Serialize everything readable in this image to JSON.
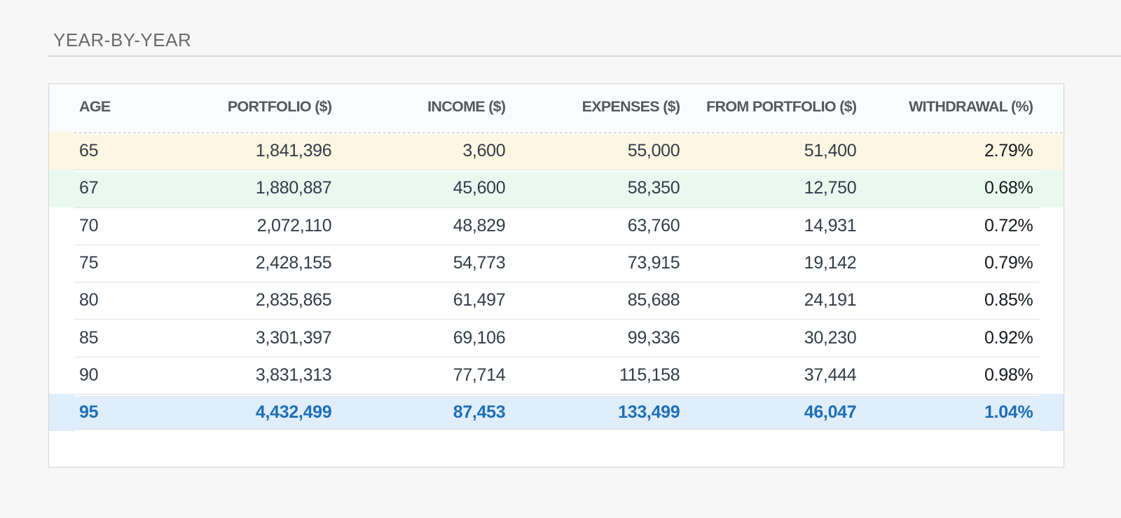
{
  "section": {
    "title": "YEAR-BY-YEAR"
  },
  "table": {
    "headers": [
      "AGE",
      "PORTFOLIO ($)",
      "INCOME ($)",
      "EXPENSES ($)",
      "FROM PORTFOLIO ($)",
      "WITHDRAWAL (%)"
    ],
    "rows": [
      {
        "age": "65",
        "portfolio": "1,841,396",
        "income": "3,600",
        "expenses": "55,000",
        "from_portfolio": "51,400",
        "withdrawal": "2.79%",
        "highlight": "yellow"
      },
      {
        "age": "67",
        "portfolio": "1,880,887",
        "income": "45,600",
        "expenses": "58,350",
        "from_portfolio": "12,750",
        "withdrawal": "0.68%",
        "highlight": "green"
      },
      {
        "age": "70",
        "portfolio": "2,072,110",
        "income": "48,829",
        "expenses": "63,760",
        "from_portfolio": "14,931",
        "withdrawal": "0.72%",
        "highlight": null
      },
      {
        "age": "75",
        "portfolio": "2,428,155",
        "income": "54,773",
        "expenses": "73,915",
        "from_portfolio": "19,142",
        "withdrawal": "0.79%",
        "highlight": null
      },
      {
        "age": "80",
        "portfolio": "2,835,865",
        "income": "61,497",
        "expenses": "85,688",
        "from_portfolio": "24,191",
        "withdrawal": "0.85%",
        "highlight": null
      },
      {
        "age": "85",
        "portfolio": "3,301,397",
        "income": "69,106",
        "expenses": "99,336",
        "from_portfolio": "30,230",
        "withdrawal": "0.92%",
        "highlight": null
      },
      {
        "age": "90",
        "portfolio": "3,831,313",
        "income": "77,714",
        "expenses": "115,158",
        "from_portfolio": "37,444",
        "withdrawal": "0.98%",
        "highlight": null
      },
      {
        "age": "95",
        "portfolio": "4,432,499",
        "income": "87,453",
        "expenses": "133,499",
        "from_portfolio": "46,047",
        "withdrawal": "1.04%",
        "highlight": "blue"
      }
    ]
  },
  "colors": {
    "page-bg": "#f7f7f8",
    "card-bg": "#ffffff",
    "card-border": "#d4d4d4",
    "header-bg": "#fafbfc",
    "rule-color": "#d9d9d9",
    "title-color": "#6a6a6a",
    "header-text": "#55585e",
    "data-text": "#333c49",
    "wd-text": "#15191d",
    "final-text": "#1e6fb8",
    "hl-yellow": "#fdf6e2",
    "hl-green": "#e9f9f0",
    "hl-blue": "#e0edfa",
    "sep-line": "#e2e2e2",
    "dash-line": "#b9b9b9"
  },
  "chart_data": {
    "type": "table",
    "title": "YEAR-BY-YEAR",
    "categories": [
      65,
      67,
      70,
      75,
      80,
      85,
      90,
      95
    ],
    "series": [
      {
        "name": "PORTFOLIO ($)",
        "values": [
          1841396,
          1880887,
          2072110,
          2428155,
          2835865,
          3301397,
          3831313,
          4432499
        ]
      },
      {
        "name": "INCOME ($)",
        "values": [
          3600,
          45600,
          48829,
          54773,
          61497,
          69106,
          77714,
          87453
        ]
      },
      {
        "name": "EXPENSES ($)",
        "values": [
          55000,
          58350,
          63760,
          73915,
          85688,
          99336,
          115158,
          133499
        ]
      },
      {
        "name": "FROM PORTFOLIO ($)",
        "values": [
          51400,
          12750,
          14931,
          19142,
          24191,
          30230,
          37444,
          46047
        ]
      },
      {
        "name": "WITHDRAWAL (%)",
        "values": [
          2.79,
          0.68,
          0.72,
          0.79,
          0.85,
          0.92,
          0.98,
          1.04
        ]
      }
    ]
  }
}
